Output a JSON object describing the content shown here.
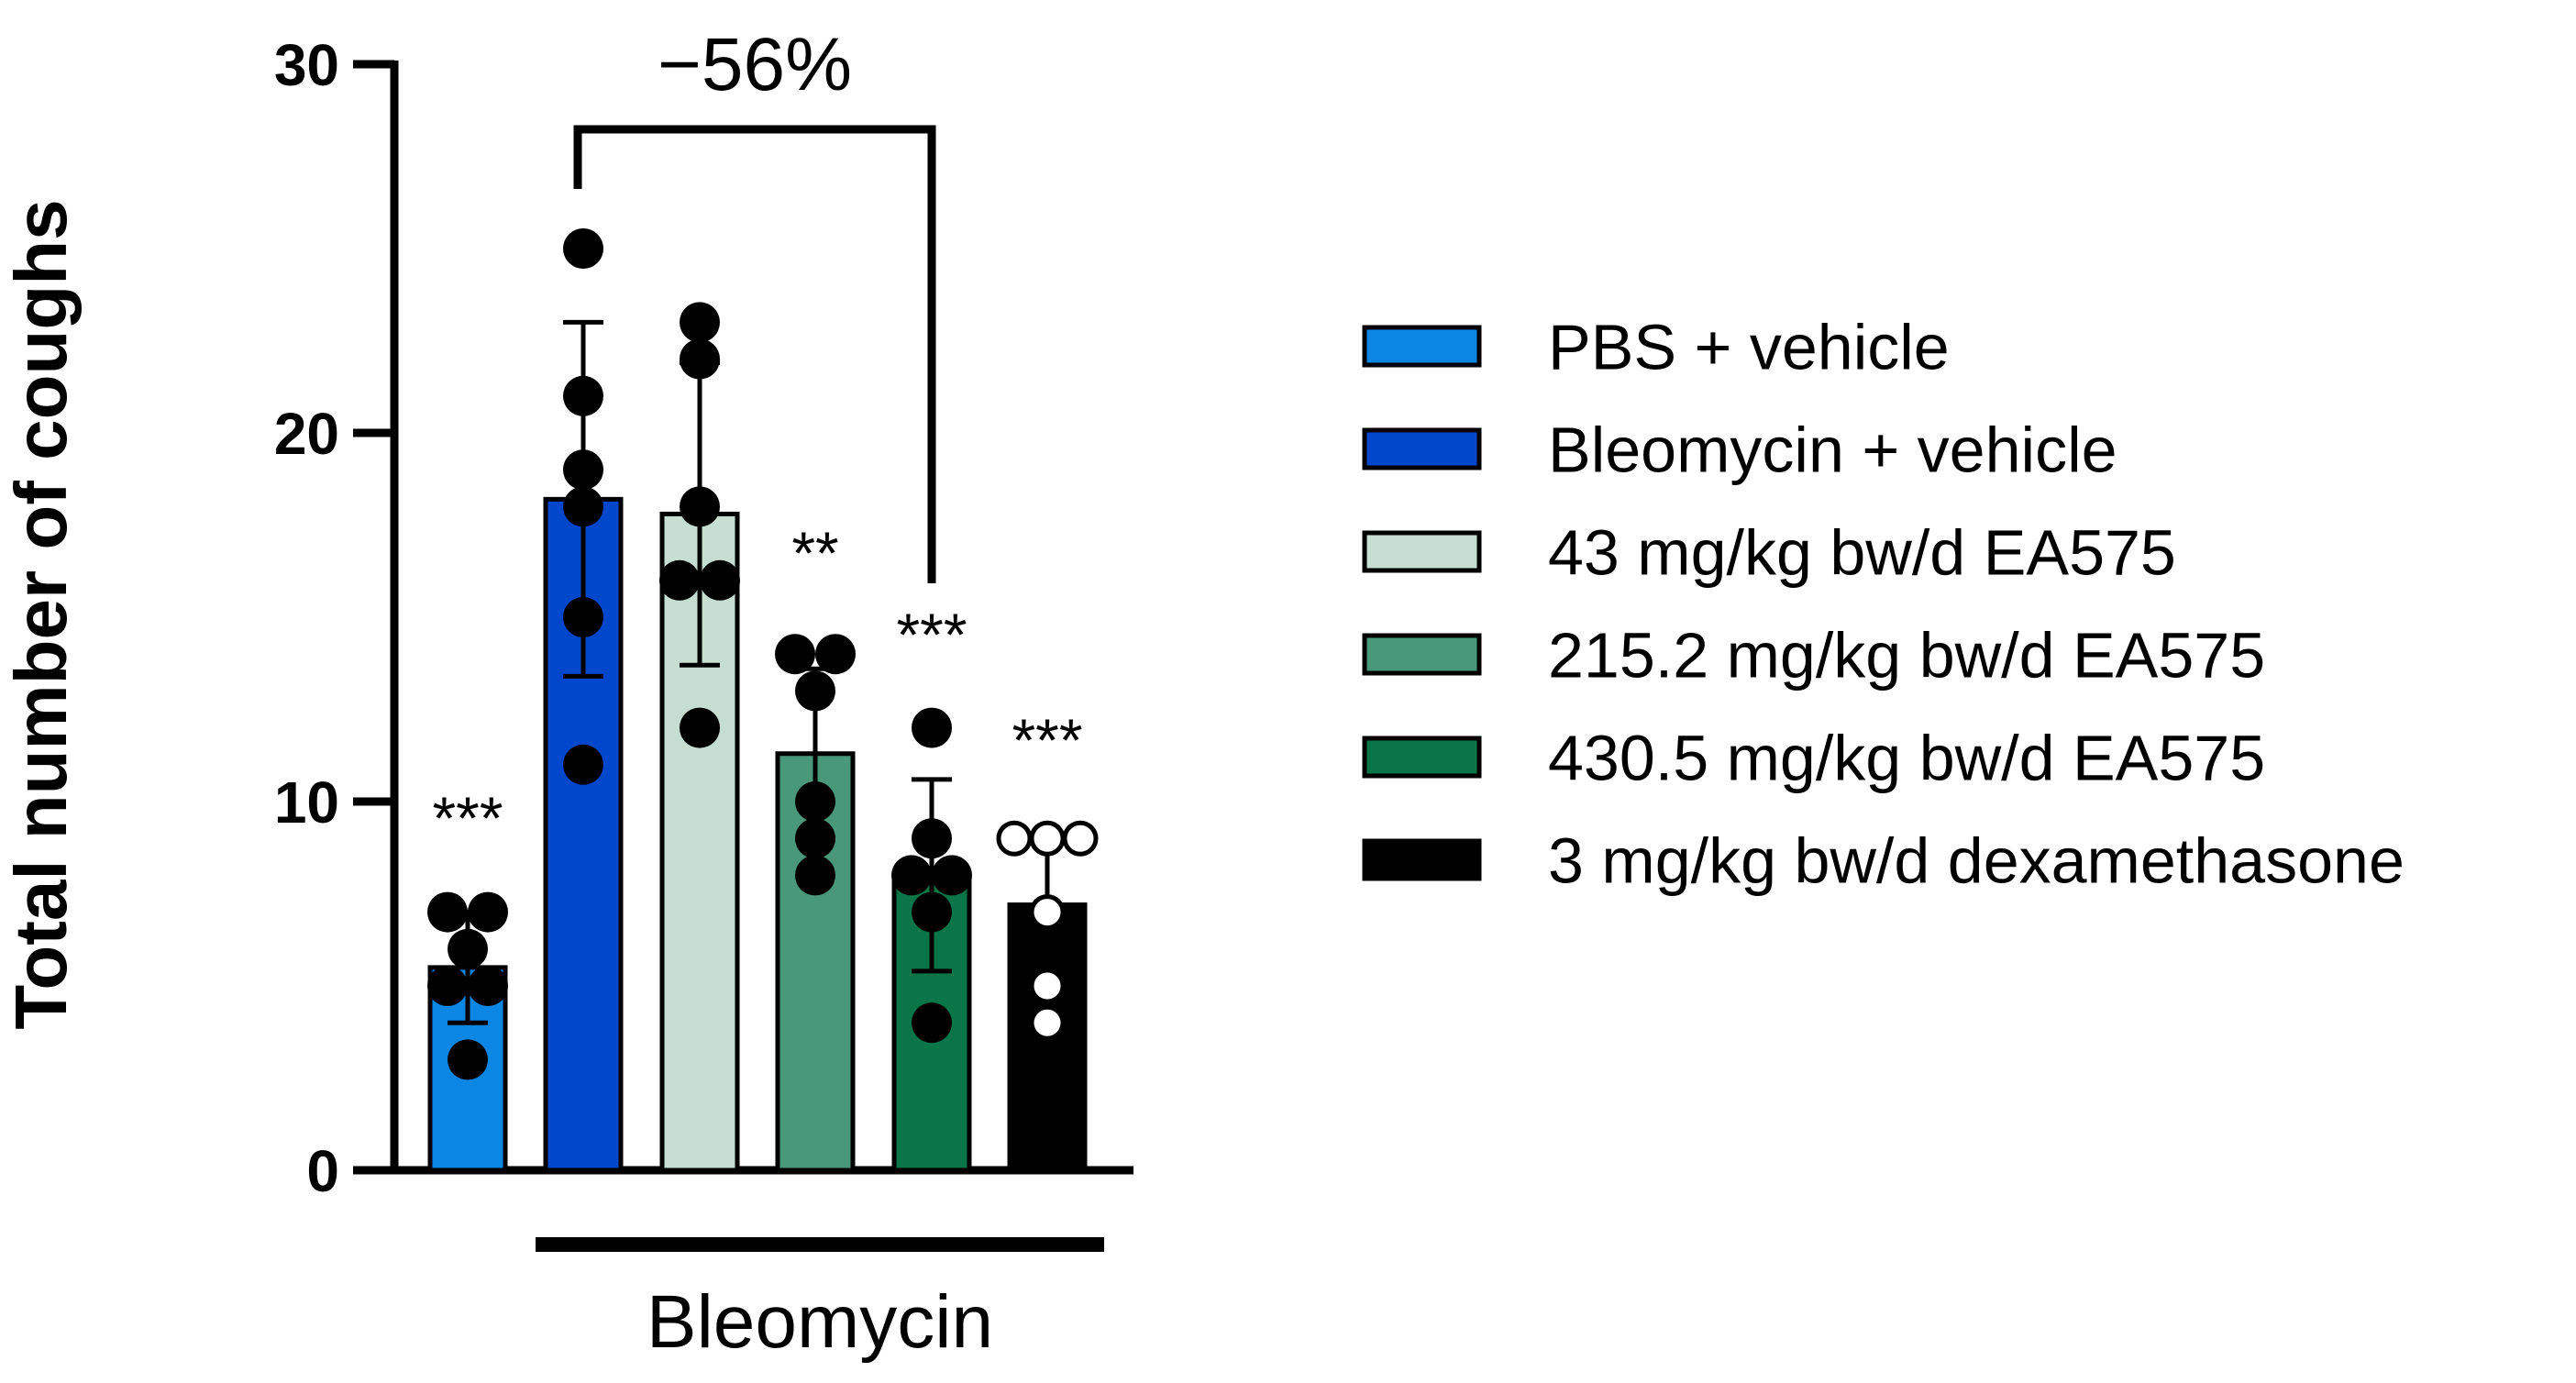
{
  "chart_data": {
    "type": "bar",
    "ylabel": "Total number of coughs",
    "ylim": [
      0,
      30
    ],
    "yticks": [
      0,
      10,
      20,
      30
    ],
    "grid": false,
    "legend_position": "right",
    "group_label": "Bleomycin",
    "bracket_label": "−56%",
    "bars": [
      {
        "name": "PBS + vehicle",
        "mean": 5.5,
        "sd": 1.5,
        "color": "#0c86e3",
        "significance": "***",
        "points": [
          7,
          7,
          6,
          5,
          5,
          3
        ],
        "point_fill": "#000000"
      },
      {
        "name": "Bleomycin + vehicle",
        "mean": 18.2,
        "sd": 4.8,
        "color": "#0047cc",
        "significance": "",
        "points": [
          25,
          21,
          19,
          18,
          15,
          11
        ],
        "point_fill": "#000000"
      },
      {
        "name": "43 mg/kg bw/d EA575",
        "mean": 17.8,
        "sd": 4.1,
        "color": "#c6ddd2",
        "significance": "",
        "points": [
          23,
          22,
          18,
          16,
          16,
          12
        ],
        "point_fill": "#000000"
      },
      {
        "name": "215.2 mg/kg bw/d EA575",
        "mean": 11.3,
        "sd": 2.3,
        "color": "#49987a",
        "significance": "**",
        "points": [
          14,
          14,
          13,
          10,
          9,
          8
        ],
        "point_fill": "#000000"
      },
      {
        "name": "430.5 mg/kg bw/d EA575",
        "mean": 8.0,
        "sd": 2.6,
        "color": "#097548",
        "significance": "***",
        "points": [
          12,
          9,
          8,
          8,
          7,
          4
        ],
        "point_fill": "#000000"
      },
      {
        "name": "3 mg/kg bw/d dexamethasone",
        "mean": 7.2,
        "sd": 1.8,
        "color": "#000000",
        "significance": "***",
        "points": [
          9,
          9,
          9,
          7,
          5,
          4
        ],
        "point_fill": "#ffffff"
      }
    ]
  }
}
